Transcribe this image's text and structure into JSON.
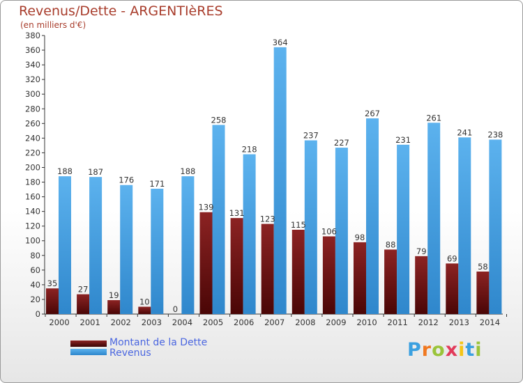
{
  "chart_data": {
    "type": "bar",
    "title": "Revenus/Dette - ARGENTIèRES",
    "subtitle": "(en milliers d'€)",
    "categories": [
      "2000",
      "2001",
      "2002",
      "2003",
      "2004",
      "2005",
      "2006",
      "2007",
      "2008",
      "2009",
      "2010",
      "2011",
      "2012",
      "2013",
      "2014"
    ],
    "series": [
      {
        "name": "Montant de la Dette",
        "color": "#7a1a1a",
        "values": [
          35,
          27,
          19,
          10,
          0,
          139,
          131,
          123,
          115,
          106,
          98,
          88,
          79,
          69,
          58
        ]
      },
      {
        "name": "Revenus",
        "color": "#4aa3e6",
        "values": [
          188,
          187,
          176,
          171,
          188,
          258,
          218,
          364,
          237,
          227,
          267,
          231,
          261,
          241,
          238
        ]
      }
    ],
    "ylim": [
      0,
      380
    ],
    "ytick_step": 20,
    "grid": false,
    "legend_position": "bottom-left"
  },
  "brand": {
    "text": "Proxiti",
    "letter_colors": [
      "#3aa0e0",
      "#f07820",
      "#9ac43a",
      "#e23a5a",
      "#f5c518",
      "#3aa0e0",
      "#9ac43a"
    ]
  }
}
